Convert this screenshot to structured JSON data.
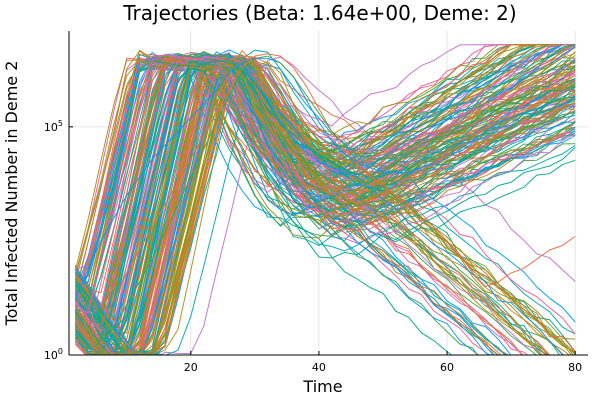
{
  "chart_data": {
    "type": "line",
    "title": "Trajectories (Beta: 1.64e+00, Deme: 2)",
    "xlabel": "Time",
    "ylabel": "Total Infected Number in Deme 2",
    "xlim": [
      1,
      82
    ],
    "yscale": "log10",
    "ylim_log10": [
      0,
      7.1
    ],
    "x_ticks": [
      20,
      40,
      60,
      80
    ],
    "y_ticks": [
      {
        "value": 1,
        "base": "10",
        "exp": "0"
      },
      {
        "value": 100000,
        "base": "10",
        "exp": "5"
      }
    ],
    "grid": true,
    "legend": "none",
    "palette": [
      "#009AFA",
      "#E26F46",
      "#3EA44E",
      "#C371D2",
      "#AC8D18",
      "#00A9AD",
      "#ED5E93",
      "#C68225",
      "#00A98D",
      "#8E971D"
    ],
    "series_count": 200,
    "time_step": 2,
    "representative_trajectories": [
      {
        "x": [
          2,
          4,
          6,
          8,
          10,
          12,
          14,
          16,
          18,
          20,
          22,
          24,
          26,
          28,
          30,
          32,
          34,
          36,
          38,
          40,
          42,
          44,
          46,
          48,
          50,
          52,
          54,
          56,
          58,
          60,
          62,
          64,
          66,
          68,
          70,
          72,
          74,
          76,
          78,
          80
        ],
        "y_log10": [
          1.2,
          1.9,
          2.5,
          3.0,
          3.5,
          3.9,
          4.3,
          4.6,
          4.9,
          5.2,
          5.5,
          5.8,
          6.2,
          6.4,
          6.5,
          6.5,
          6.4,
          6.1,
          5.6,
          5.1,
          4.7,
          4.4,
          4.2,
          4.1,
          4.0,
          4.0,
          4.0,
          4.1,
          4.2,
          4.3,
          4.5,
          4.7,
          4.9,
          5.1,
          5.2,
          5.3,
          5.4,
          5.5,
          5.5,
          5.6
        ]
      },
      {
        "x": [
          2,
          4,
          6,
          8,
          10,
          12,
          14,
          16,
          18,
          20,
          22,
          24,
          26,
          28,
          30,
          32,
          34,
          36,
          38,
          40,
          42,
          44,
          46,
          48,
          50,
          52,
          54,
          56,
          58,
          60,
          62,
          64,
          66,
          68,
          70,
          72,
          74,
          76,
          78,
          80
        ],
        "y_log10": [
          0.6,
          0.4,
          0.7,
          1.2,
          1.8,
          2.3,
          2.8,
          3.3,
          3.8,
          4.3,
          4.8,
          5.3,
          5.8,
          6.3,
          6.55,
          6.6,
          6.55,
          6.3,
          5.9,
          5.4,
          4.9,
          4.5,
          4.2,
          3.9,
          3.7,
          3.5,
          3.3,
          3.1,
          2.8,
          2.5,
          2.2,
          1.8,
          1.5,
          1.6,
          1.8,
          1.9,
          2.1,
          2.3,
          2.4,
          2.6
        ]
      },
      {
        "x": [
          2,
          4,
          6,
          8,
          10,
          12,
          14,
          16,
          18,
          20,
          22,
          24,
          26,
          28,
          30,
          32,
          34,
          36,
          38,
          40,
          42,
          44,
          46,
          48,
          50,
          52,
          54,
          56,
          58,
          60,
          62,
          64,
          66,
          68,
          70,
          72,
          74,
          76,
          78,
          80
        ],
        "y_log10": [
          0.9,
          0.5,
          0.3,
          0.6,
          1.1,
          1.6,
          2.1,
          2.7,
          3.3,
          3.9,
          4.5,
          5.1,
          5.7,
          6.2,
          6.5,
          6.55,
          6.4,
          6.1,
          5.7,
          5.3,
          4.9,
          4.6,
          4.4,
          4.3,
          4.3,
          4.3,
          4.4,
          4.5,
          4.6,
          4.8,
          4.9,
          5.1,
          5.3,
          5.4,
          5.5,
          5.6,
          5.7,
          5.8,
          5.8,
          5.9
        ]
      }
    ]
  }
}
